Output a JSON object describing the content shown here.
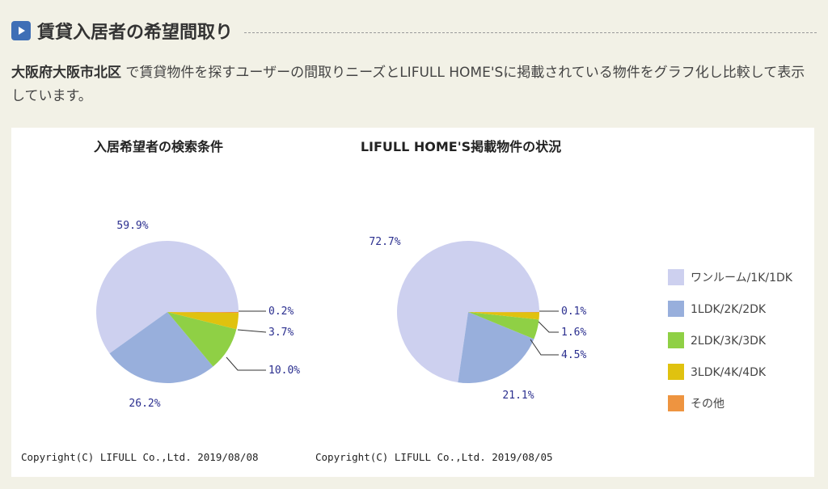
{
  "header": {
    "title": "賃貸入居者の希望間取り",
    "icon": "play-icon"
  },
  "description": {
    "region": "大阪府大阪市北区",
    "text": " で賃貸物件を探すユーザーの間取りニーズとLIFULL HOME'Sに掲載されている物件をグラフ化し比較して表示しています。"
  },
  "legend": [
    {
      "label": "ワンルーム/1K/1DK",
      "color": "#cdd0ef"
    },
    {
      "label": "1LDK/2K/2DK",
      "color": "#98afdc"
    },
    {
      "label": "2LDK/3K/3DK",
      "color": "#8fd045"
    },
    {
      "label": "3LDK/4K/4DK",
      "color": "#e0c20f"
    },
    {
      "label": "その他",
      "color": "#ee9440"
    }
  ],
  "chart_data": [
    {
      "type": "pie",
      "title": "入居希望者の検索条件",
      "categories": [
        "ワンルーム/1K/1DK",
        "1LDK/2K/2DK",
        "2LDK/3K/3DK",
        "3LDK/4K/4DK",
        "その他"
      ],
      "values": [
        59.9,
        26.2,
        10.0,
        3.7,
        0.2
      ],
      "labels": [
        "59.9%",
        "26.2%",
        "10.0%",
        "3.7%",
        "0.2%"
      ],
      "copyright": "Copyright(C) LIFULL Co.,Ltd.  2019/08/08"
    },
    {
      "type": "pie",
      "title": "LIFULL HOME'S掲載物件の状況",
      "categories": [
        "ワンルーム/1K/1DK",
        "1LDK/2K/2DK",
        "2LDK/3K/3DK",
        "3LDK/4K/4DK",
        "その他"
      ],
      "values": [
        72.7,
        21.1,
        4.5,
        1.6,
        0.1
      ],
      "labels": [
        "72.7%",
        "21.1%",
        "4.5%",
        "1.6%",
        "0.1%"
      ],
      "copyright": "Copyright(C) LIFULL Co.,Ltd.  2019/08/05"
    }
  ]
}
